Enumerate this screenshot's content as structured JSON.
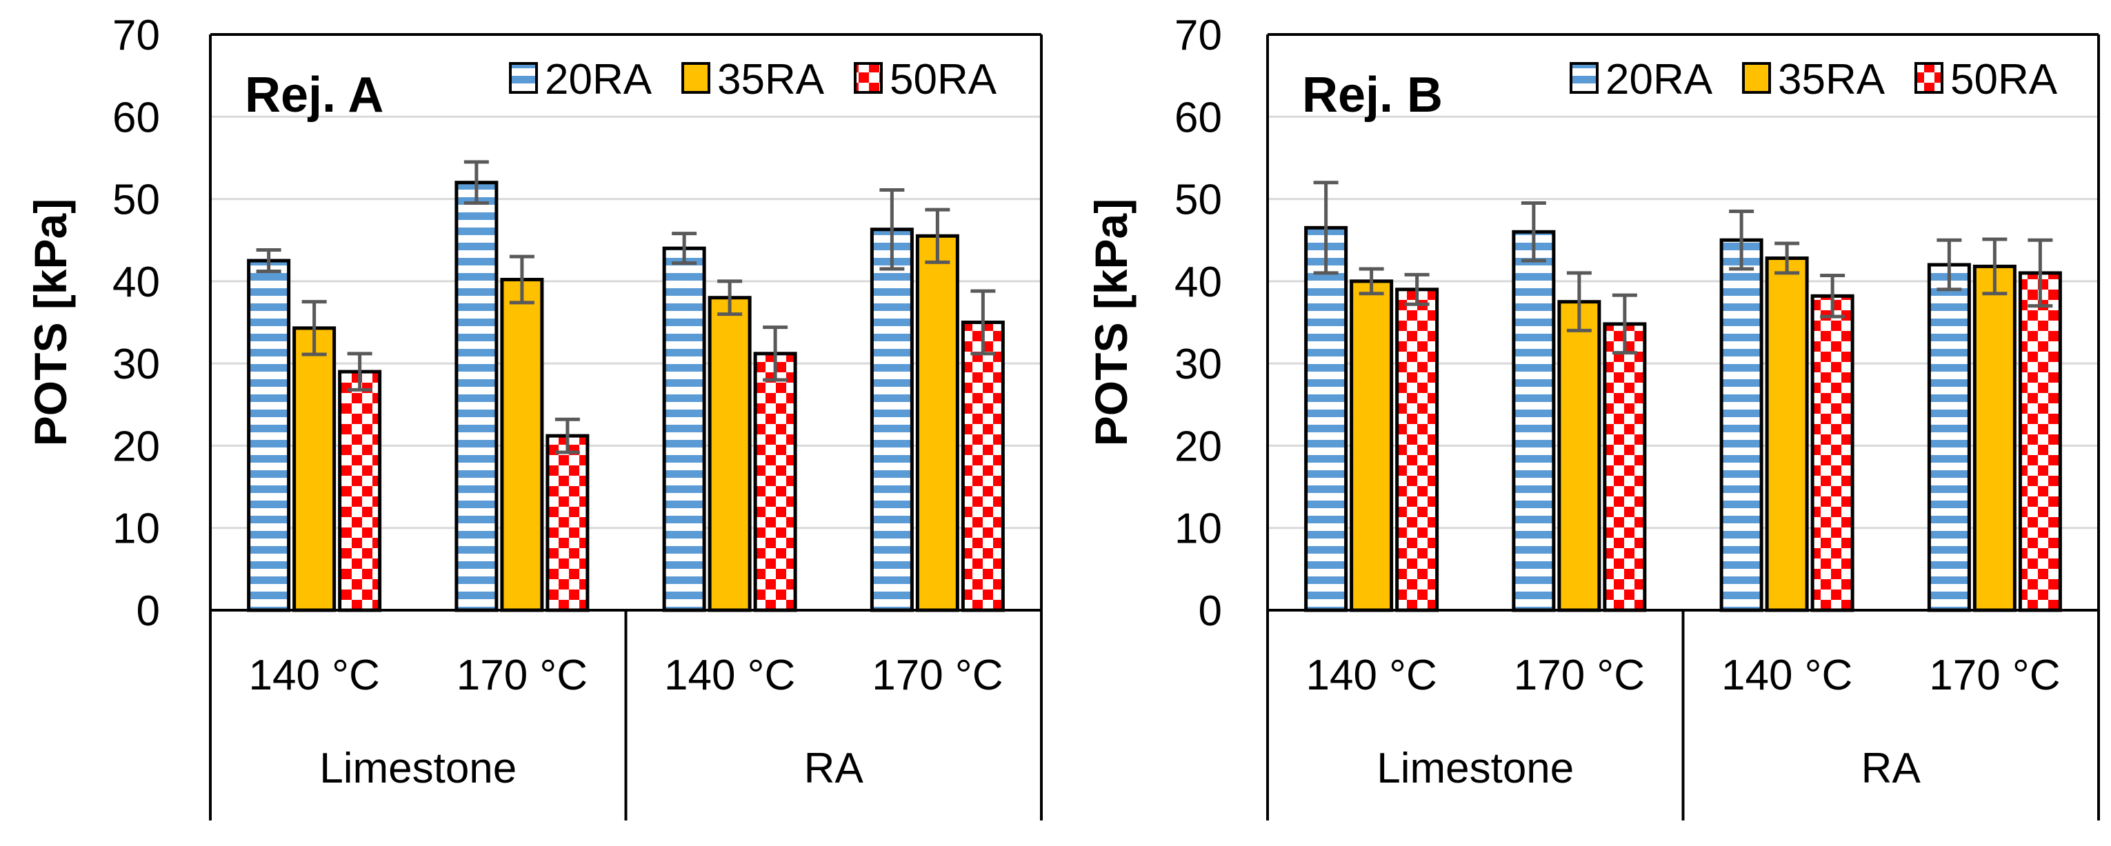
{
  "chart_data": [
    {
      "type": "bar",
      "panel_label": "Rej. A",
      "ylabel": "POTS [kPa]",
      "ylim": [
        0,
        70
      ],
      "yticks": [
        "0",
        "10",
        "20",
        "30",
        "40",
        "50",
        "60",
        "70"
      ],
      "grid": true,
      "legend_position": "top-right",
      "categories": [
        "140 °C",
        "170 °C",
        "140 °C",
        "170 °C"
      ],
      "groups": [
        {
          "label": "Limestone",
          "span": 2
        },
        {
          "label": "RA",
          "span": 2
        }
      ],
      "series": [
        {
          "name": "20RA",
          "pattern": "horizontal-stripes",
          "color": "#5b9bd5",
          "values": [
            42.5,
            52.0,
            44.0,
            46.3
          ],
          "errors": [
            1.3,
            2.5,
            1.8,
            4.8
          ]
        },
        {
          "name": "35RA",
          "pattern": "solid",
          "color": "#ffc000",
          "values": [
            34.3,
            40.2,
            38.0,
            45.5
          ],
          "errors": [
            3.2,
            2.8,
            2.0,
            3.2
          ]
        },
        {
          "name": "50RA",
          "pattern": "checkerboard",
          "color": "#ff0000",
          "values": [
            29.0,
            21.2,
            31.2,
            35.0
          ],
          "errors": [
            2.2,
            2.0,
            3.2,
            3.8
          ]
        }
      ]
    },
    {
      "type": "bar",
      "panel_label": "Rej. B",
      "ylabel": "POTS [kPa]",
      "ylim": [
        0,
        70
      ],
      "yticks": [
        "0",
        "10",
        "20",
        "30",
        "40",
        "50",
        "60",
        "70"
      ],
      "grid": true,
      "legend_position": "top-right",
      "categories": [
        "140 °C",
        "170 °C",
        "140 °C",
        "170 °C"
      ],
      "groups": [
        {
          "label": "Limestone",
          "span": 2
        },
        {
          "label": "RA",
          "span": 2
        }
      ],
      "series": [
        {
          "name": "20RA",
          "pattern": "horizontal-stripes",
          "color": "#5b9bd5",
          "values": [
            46.5,
            46.0,
            45.0,
            42.0
          ],
          "errors": [
            5.5,
            3.5,
            3.5,
            3.0
          ]
        },
        {
          "name": "35RA",
          "pattern": "solid",
          "color": "#ffc000",
          "values": [
            40.0,
            37.5,
            42.8,
            41.8
          ],
          "errors": [
            1.5,
            3.5,
            1.8,
            3.3
          ]
        },
        {
          "name": "50RA",
          "pattern": "checkerboard",
          "color": "#ff0000",
          "values": [
            39.0,
            34.8,
            38.2,
            41.0
          ],
          "errors": [
            1.8,
            3.5,
            2.5,
            4.0
          ]
        }
      ]
    }
  ]
}
